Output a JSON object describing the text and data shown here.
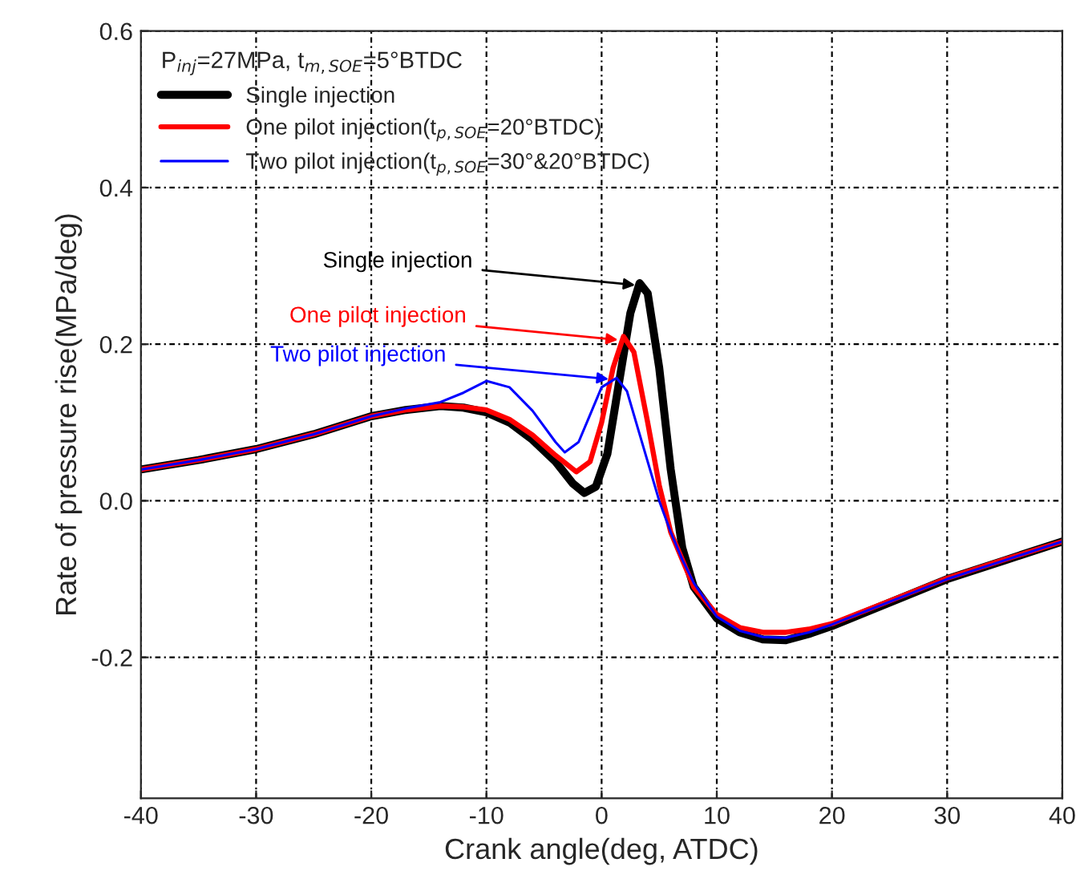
{
  "chart_data": {
    "type": "line",
    "xlabel": "Crank angle(deg, ATDC)",
    "ylabel": "Rate of pressure rise(MPa/deg)",
    "legend_title": "P$_{inj}$=27MPa, t$_{m,SOE}$=5°BTDC",
    "xlim": [
      -40,
      40
    ],
    "xticks": [
      -40,
      -30,
      -20,
      -10,
      0,
      10,
      20,
      30,
      40
    ],
    "ylim": [
      -0.38,
      0.6
    ],
    "yticks": [
      -0.2,
      {
        "value": 0,
        "label": "0.0"
      },
      0.2,
      0.4,
      0.6
    ],
    "grid": true,
    "legend": "top left",
    "line_style": "solid",
    "series": [
      {
        "name": "Single injection",
        "color": "#000000",
        "x": [
          -40,
          -35,
          -30,
          -25,
          -20,
          -17,
          -14,
          -12,
          -10,
          -8,
          -6,
          -4,
          -2.5,
          -1.5,
          -0.5,
          0.5,
          1.5,
          2.5,
          3.3,
          4,
          5,
          6,
          7,
          8,
          10,
          12,
          14,
          16,
          18,
          20,
          25,
          30,
          35,
          40
        ],
        "values": [
          0.04,
          0.052,
          0.066,
          0.085,
          0.108,
          0.116,
          0.121,
          0.119,
          0.113,
          0.1,
          0.078,
          0.05,
          0.022,
          0.01,
          0.018,
          0.06,
          0.15,
          0.24,
          0.278,
          0.265,
          0.17,
          0.04,
          -0.06,
          -0.11,
          -0.15,
          -0.168,
          -0.177,
          -0.178,
          -0.17,
          -0.16,
          -0.13,
          -0.1,
          -0.076,
          -0.052
        ]
      },
      {
        "name": "One pilot injection(t$_{p,SOE}$=20°BTDC)",
        "color": "#ff0000",
        "x": [
          -40,
          -35,
          -30,
          -25,
          -20,
          -17,
          -14,
          -12,
          -10,
          -8,
          -6,
          -4,
          -2.2,
          -1,
          0,
          1,
          1.9,
          2.8,
          4,
          5,
          6,
          7,
          8,
          10,
          12,
          14,
          16,
          18,
          20,
          25,
          30,
          35,
          40
        ],
        "values": [
          0.04,
          0.052,
          0.066,
          0.085,
          0.108,
          0.116,
          0.121,
          0.12,
          0.116,
          0.104,
          0.084,
          0.058,
          0.037,
          0.05,
          0.1,
          0.17,
          0.21,
          0.19,
          0.1,
          0.02,
          -0.04,
          -0.075,
          -0.11,
          -0.145,
          -0.162,
          -0.168,
          -0.168,
          -0.164,
          -0.157,
          -0.128,
          -0.099,
          -0.075,
          -0.052
        ]
      },
      {
        "name": "Two pilot injection(t$_{p,SOE}$=30°&20°BTDC)",
        "color": "#0000ff",
        "x": [
          -40,
          -35,
          -30,
          -25,
          -20,
          -17,
          -14,
          -12,
          -10,
          -8,
          -6,
          -4,
          -3.2,
          -2,
          -1,
          0,
          1.3,
          2.2,
          3,
          4,
          5,
          6,
          7,
          8,
          10,
          12,
          14,
          16,
          18,
          20,
          25,
          30,
          35,
          40
        ],
        "values": [
          0.04,
          0.052,
          0.066,
          0.085,
          0.108,
          0.118,
          0.126,
          0.138,
          0.153,
          0.145,
          0.115,
          0.075,
          0.062,
          0.075,
          0.11,
          0.145,
          0.157,
          0.14,
          0.1,
          0.05,
          0.0,
          -0.04,
          -0.075,
          -0.105,
          -0.148,
          -0.166,
          -0.174,
          -0.175,
          -0.168,
          -0.158,
          -0.129,
          -0.1,
          -0.076,
          -0.052
        ]
      }
    ],
    "annotations": [
      {
        "text": "Single injection",
        "x": 3.3,
        "y": 0.275
      },
      {
        "text": "One pilot injection",
        "x": 1.8,
        "y": 0.205
      },
      {
        "text": "Two pilot injection",
        "x": 1.0,
        "y": 0.155
      }
    ]
  }
}
